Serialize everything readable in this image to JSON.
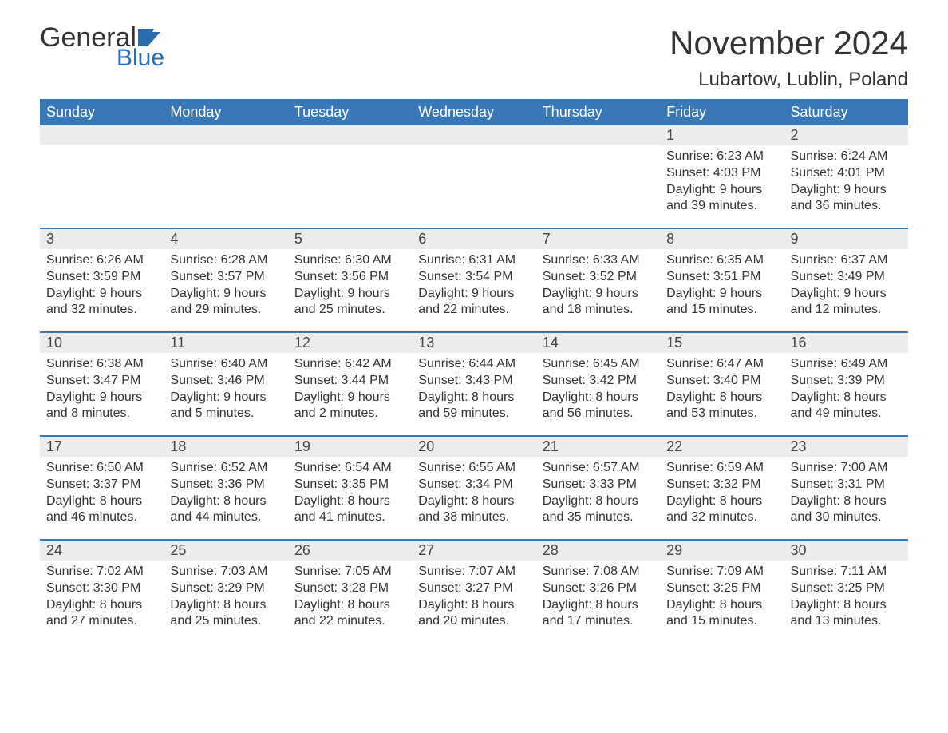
{
  "brand": {
    "word1": "General",
    "word2": "Blue",
    "accent_color": "#2a6cb0"
  },
  "title": "November 2024",
  "location": "Lubartow, Lublin, Poland",
  "colors": {
    "header_bg": "#3a77b7",
    "header_text": "#ffffff",
    "daynum_bg": "#ececec",
    "text": "#333333",
    "border": "#3a77b7"
  },
  "weekdays": [
    "Sunday",
    "Monday",
    "Tuesday",
    "Wednesday",
    "Thursday",
    "Friday",
    "Saturday"
  ],
  "weeks": [
    [
      null,
      null,
      null,
      null,
      null,
      {
        "n": "1",
        "sr": "Sunrise: 6:23 AM",
        "ss": "Sunset: 4:03 PM",
        "d1": "Daylight: 9 hours",
        "d2": "and 39 minutes."
      },
      {
        "n": "2",
        "sr": "Sunrise: 6:24 AM",
        "ss": "Sunset: 4:01 PM",
        "d1": "Daylight: 9 hours",
        "d2": "and 36 minutes."
      }
    ],
    [
      {
        "n": "3",
        "sr": "Sunrise: 6:26 AM",
        "ss": "Sunset: 3:59 PM",
        "d1": "Daylight: 9 hours",
        "d2": "and 32 minutes."
      },
      {
        "n": "4",
        "sr": "Sunrise: 6:28 AM",
        "ss": "Sunset: 3:57 PM",
        "d1": "Daylight: 9 hours",
        "d2": "and 29 minutes."
      },
      {
        "n": "5",
        "sr": "Sunrise: 6:30 AM",
        "ss": "Sunset: 3:56 PM",
        "d1": "Daylight: 9 hours",
        "d2": "and 25 minutes."
      },
      {
        "n": "6",
        "sr": "Sunrise: 6:31 AM",
        "ss": "Sunset: 3:54 PM",
        "d1": "Daylight: 9 hours",
        "d2": "and 22 minutes."
      },
      {
        "n": "7",
        "sr": "Sunrise: 6:33 AM",
        "ss": "Sunset: 3:52 PM",
        "d1": "Daylight: 9 hours",
        "d2": "and 18 minutes."
      },
      {
        "n": "8",
        "sr": "Sunrise: 6:35 AM",
        "ss": "Sunset: 3:51 PM",
        "d1": "Daylight: 9 hours",
        "d2": "and 15 minutes."
      },
      {
        "n": "9",
        "sr": "Sunrise: 6:37 AM",
        "ss": "Sunset: 3:49 PM",
        "d1": "Daylight: 9 hours",
        "d2": "and 12 minutes."
      }
    ],
    [
      {
        "n": "10",
        "sr": "Sunrise: 6:38 AM",
        "ss": "Sunset: 3:47 PM",
        "d1": "Daylight: 9 hours",
        "d2": "and 8 minutes."
      },
      {
        "n": "11",
        "sr": "Sunrise: 6:40 AM",
        "ss": "Sunset: 3:46 PM",
        "d1": "Daylight: 9 hours",
        "d2": "and 5 minutes."
      },
      {
        "n": "12",
        "sr": "Sunrise: 6:42 AM",
        "ss": "Sunset: 3:44 PM",
        "d1": "Daylight: 9 hours",
        "d2": "and 2 minutes."
      },
      {
        "n": "13",
        "sr": "Sunrise: 6:44 AM",
        "ss": "Sunset: 3:43 PM",
        "d1": "Daylight: 8 hours",
        "d2": "and 59 minutes."
      },
      {
        "n": "14",
        "sr": "Sunrise: 6:45 AM",
        "ss": "Sunset: 3:42 PM",
        "d1": "Daylight: 8 hours",
        "d2": "and 56 minutes."
      },
      {
        "n": "15",
        "sr": "Sunrise: 6:47 AM",
        "ss": "Sunset: 3:40 PM",
        "d1": "Daylight: 8 hours",
        "d2": "and 53 minutes."
      },
      {
        "n": "16",
        "sr": "Sunrise: 6:49 AM",
        "ss": "Sunset: 3:39 PM",
        "d1": "Daylight: 8 hours",
        "d2": "and 49 minutes."
      }
    ],
    [
      {
        "n": "17",
        "sr": "Sunrise: 6:50 AM",
        "ss": "Sunset: 3:37 PM",
        "d1": "Daylight: 8 hours",
        "d2": "and 46 minutes."
      },
      {
        "n": "18",
        "sr": "Sunrise: 6:52 AM",
        "ss": "Sunset: 3:36 PM",
        "d1": "Daylight: 8 hours",
        "d2": "and 44 minutes."
      },
      {
        "n": "19",
        "sr": "Sunrise: 6:54 AM",
        "ss": "Sunset: 3:35 PM",
        "d1": "Daylight: 8 hours",
        "d2": "and 41 minutes."
      },
      {
        "n": "20",
        "sr": "Sunrise: 6:55 AM",
        "ss": "Sunset: 3:34 PM",
        "d1": "Daylight: 8 hours",
        "d2": "and 38 minutes."
      },
      {
        "n": "21",
        "sr": "Sunrise: 6:57 AM",
        "ss": "Sunset: 3:33 PM",
        "d1": "Daylight: 8 hours",
        "d2": "and 35 minutes."
      },
      {
        "n": "22",
        "sr": "Sunrise: 6:59 AM",
        "ss": "Sunset: 3:32 PM",
        "d1": "Daylight: 8 hours",
        "d2": "and 32 minutes."
      },
      {
        "n": "23",
        "sr": "Sunrise: 7:00 AM",
        "ss": "Sunset: 3:31 PM",
        "d1": "Daylight: 8 hours",
        "d2": "and 30 minutes."
      }
    ],
    [
      {
        "n": "24",
        "sr": "Sunrise: 7:02 AM",
        "ss": "Sunset: 3:30 PM",
        "d1": "Daylight: 8 hours",
        "d2": "and 27 minutes."
      },
      {
        "n": "25",
        "sr": "Sunrise: 7:03 AM",
        "ss": "Sunset: 3:29 PM",
        "d1": "Daylight: 8 hours",
        "d2": "and 25 minutes."
      },
      {
        "n": "26",
        "sr": "Sunrise: 7:05 AM",
        "ss": "Sunset: 3:28 PM",
        "d1": "Daylight: 8 hours",
        "d2": "and 22 minutes."
      },
      {
        "n": "27",
        "sr": "Sunrise: 7:07 AM",
        "ss": "Sunset: 3:27 PM",
        "d1": "Daylight: 8 hours",
        "d2": "and 20 minutes."
      },
      {
        "n": "28",
        "sr": "Sunrise: 7:08 AM",
        "ss": "Sunset: 3:26 PM",
        "d1": "Daylight: 8 hours",
        "d2": "and 17 minutes."
      },
      {
        "n": "29",
        "sr": "Sunrise: 7:09 AM",
        "ss": "Sunset: 3:25 PM",
        "d1": "Daylight: 8 hours",
        "d2": "and 15 minutes."
      },
      {
        "n": "30",
        "sr": "Sunrise: 7:11 AM",
        "ss": "Sunset: 3:25 PM",
        "d1": "Daylight: 8 hours",
        "d2": "and 13 minutes."
      }
    ]
  ]
}
